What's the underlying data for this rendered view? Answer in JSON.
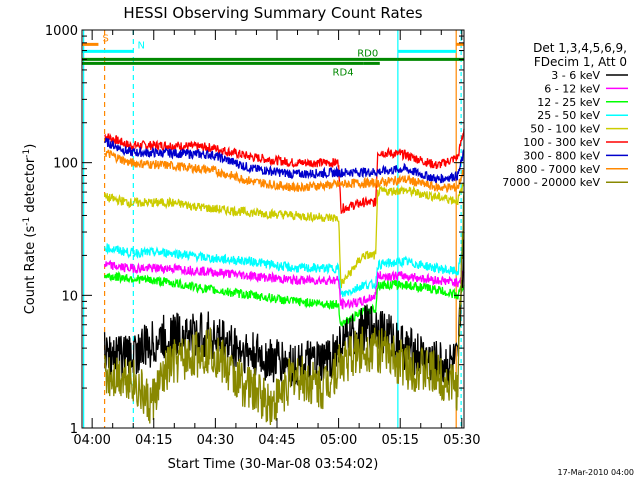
{
  "chart_data": {
    "type": "line",
    "title": "HESSI Observing Summary Count Rates",
    "xlabel": "Start Time (30-Mar-08 03:54:02)",
    "ylabel_main": "Count Rate (s",
    "ylabel_sup1": "-1",
    "ylabel_mid": " detector",
    "ylabel_sup2": "-1",
    "ylabel_end": ")",
    "yscale": "log",
    "ylim": [
      1,
      1000
    ],
    "xlim_minutes": [
      3.5,
      96.5
    ],
    "x_ticks": [
      {
        "label": "04:00",
        "min": 5.97
      },
      {
        "label": "04:15",
        "min": 20.97
      },
      {
        "label": "04:30",
        "min": 35.97
      },
      {
        "label": "04:45",
        "min": 50.97
      },
      {
        "label": "05:00",
        "min": 65.97
      },
      {
        "label": "05:15",
        "min": 80.97
      },
      {
        "label": "05:30",
        "min": 95.97
      }
    ],
    "y_ticks": [
      {
        "label": "1",
        "value": 1
      },
      {
        "label": "10",
        "value": 10
      },
      {
        "label": "100",
        "value": 100
      },
      {
        "label": "1000",
        "value": 1000
      }
    ],
    "legend": {
      "header": [
        "Det 1,3,4,5,6,9,",
        "FDecim 1, Att 0"
      ],
      "entries": [
        {
          "label": "3 - 6 keV",
          "color": "#000000"
        },
        {
          "label": "6 - 12 keV",
          "color": "#ff00ff"
        },
        {
          "label": "12 - 25 keV",
          "color": "#00ff00"
        },
        {
          "label": "25 - 50 keV",
          "color": "#00ffff"
        },
        {
          "label": "50 - 100 keV",
          "color": "#cccc00"
        },
        {
          "label": "100 - 300 keV",
          "color": "#ff0000"
        },
        {
          "label": "300 - 800 keV",
          "color": "#0000cc"
        },
        {
          "label": "800 - 7000 keV",
          "color": "#ff8800"
        },
        {
          "label": "7000 - 20000 keV",
          "color": "#888800"
        }
      ]
    },
    "flags": [
      {
        "label": "S",
        "color": "#ff8800",
        "value": 780
      },
      {
        "label": "N",
        "color": "#00ffff",
        "value": 690
      },
      {
        "label": "RD0",
        "color": "#008800",
        "value": 600
      },
      {
        "label": "RD4",
        "color": "#008800",
        "value": 560
      }
    ],
    "series": [
      {
        "name": "100 - 300 keV",
        "color": "#ff0000",
        "points": [
          [
            9,
            160
          ],
          [
            15,
            135
          ],
          [
            25,
            135
          ],
          [
            35,
            130
          ],
          [
            45,
            110
          ],
          [
            55,
            100
          ],
          [
            66,
            100
          ],
          [
            66.5,
            45
          ],
          [
            72,
            50
          ],
          [
            75,
            50
          ],
          [
            75.5,
            120
          ],
          [
            82,
            115
          ],
          [
            90,
            95
          ],
          [
            95,
            110
          ],
          [
            96.5,
            180
          ]
        ]
      },
      {
        "name": "300 - 800 keV",
        "color": "#0000cc",
        "points": [
          [
            9,
            145
          ],
          [
            15,
            120
          ],
          [
            25,
            118
          ],
          [
            35,
            115
          ],
          [
            45,
            90
          ],
          [
            55,
            82
          ],
          [
            70,
            85
          ],
          [
            75,
            85
          ],
          [
            82,
            90
          ],
          [
            90,
            75
          ],
          [
            95,
            80
          ],
          [
            96.5,
            120
          ]
        ]
      },
      {
        "name": "800 - 7000 keV",
        "color": "#ff8800",
        "points": [
          [
            9,
            120
          ],
          [
            15,
            100
          ],
          [
            25,
            95
          ],
          [
            35,
            88
          ],
          [
            45,
            72
          ],
          [
            55,
            65
          ],
          [
            70,
            70
          ],
          [
            75,
            70
          ],
          [
            82,
            75
          ],
          [
            90,
            65
          ],
          [
            95,
            65
          ],
          [
            96.5,
            90
          ]
        ]
      },
      {
        "name": "50 - 100 keV",
        "color": "#cccc00",
        "points": [
          [
            9,
            55
          ],
          [
            15,
            50
          ],
          [
            25,
            50
          ],
          [
            35,
            45
          ],
          [
            45,
            42
          ],
          [
            55,
            40
          ],
          [
            66,
            38
          ],
          [
            66.5,
            12
          ],
          [
            72,
            20
          ],
          [
            75,
            20
          ],
          [
            75.5,
            60
          ],
          [
            82,
            62
          ],
          [
            90,
            55
          ],
          [
            95,
            52
          ],
          [
            96.5,
            70
          ]
        ]
      },
      {
        "name": "25 - 50 keV",
        "color": "#00ffff",
        "points": [
          [
            9,
            23
          ],
          [
            15,
            21
          ],
          [
            25,
            21
          ],
          [
            35,
            19
          ],
          [
            45,
            18
          ],
          [
            55,
            16
          ],
          [
            66,
            16
          ],
          [
            66.5,
            10
          ],
          [
            72,
            12
          ],
          [
            75,
            12
          ],
          [
            75.5,
            17
          ],
          [
            82,
            18
          ],
          [
            90,
            16
          ],
          [
            95,
            15
          ],
          [
            96.5,
            25
          ]
        ]
      },
      {
        "name": "6 - 12 keV",
        "color": "#ff00ff",
        "points": [
          [
            9,
            17
          ],
          [
            15,
            16
          ],
          [
            25,
            16
          ],
          [
            35,
            15
          ],
          [
            45,
            14
          ],
          [
            55,
            13
          ],
          [
            66,
            13
          ],
          [
            66.5,
            8.5
          ],
          [
            72,
            9
          ],
          [
            75,
            10
          ],
          [
            75.5,
            14
          ],
          [
            82,
            14
          ],
          [
            90,
            13
          ],
          [
            95,
            12.5
          ],
          [
            96.5,
            15
          ]
        ]
      },
      {
        "name": "12 - 25 keV",
        "color": "#00ff00",
        "points": [
          [
            9,
            14
          ],
          [
            15,
            13.5
          ],
          [
            25,
            12.5
          ],
          [
            35,
            11
          ],
          [
            45,
            10
          ],
          [
            55,
            9
          ],
          [
            66,
            8.5
          ],
          [
            66.5,
            6
          ],
          [
            72,
            7.5
          ],
          [
            75,
            8
          ],
          [
            75.5,
            12
          ],
          [
            82,
            12
          ],
          [
            90,
            11
          ],
          [
            95,
            10
          ],
          [
            96.5,
            12
          ]
        ]
      },
      {
        "name": "3 - 6 keV",
        "color": "#000000",
        "points": [
          [
            9,
            3.5
          ],
          [
            15,
            3.5
          ],
          [
            25,
            5
          ],
          [
            35,
            5
          ],
          [
            45,
            3.5
          ],
          [
            55,
            3
          ],
          [
            62,
            3
          ],
          [
            66,
            4
          ],
          [
            72,
            5.5
          ],
          [
            75,
            6
          ],
          [
            82,
            4
          ],
          [
            90,
            3
          ],
          [
            95,
            3
          ],
          [
            96.5,
            30
          ]
        ]
      },
      {
        "name": "7000 - 20000 keV",
        "color": "#888800",
        "points": [
          [
            9,
            2.5
          ],
          [
            15,
            2.5
          ],
          [
            20,
            1.5
          ],
          [
            25,
            3
          ],
          [
            35,
            4
          ],
          [
            40,
            2.5
          ],
          [
            50,
            1.5
          ],
          [
            55,
            2.5
          ],
          [
            62,
            2
          ],
          [
            66,
            3
          ],
          [
            72,
            4
          ],
          [
            75,
            4
          ],
          [
            82,
            3
          ],
          [
            90,
            2.5
          ],
          [
            95,
            2
          ],
          [
            96.5,
            60
          ]
        ]
      }
    ]
  },
  "footer": {
    "timestamp": "17-Mar-2010 04:00"
  }
}
